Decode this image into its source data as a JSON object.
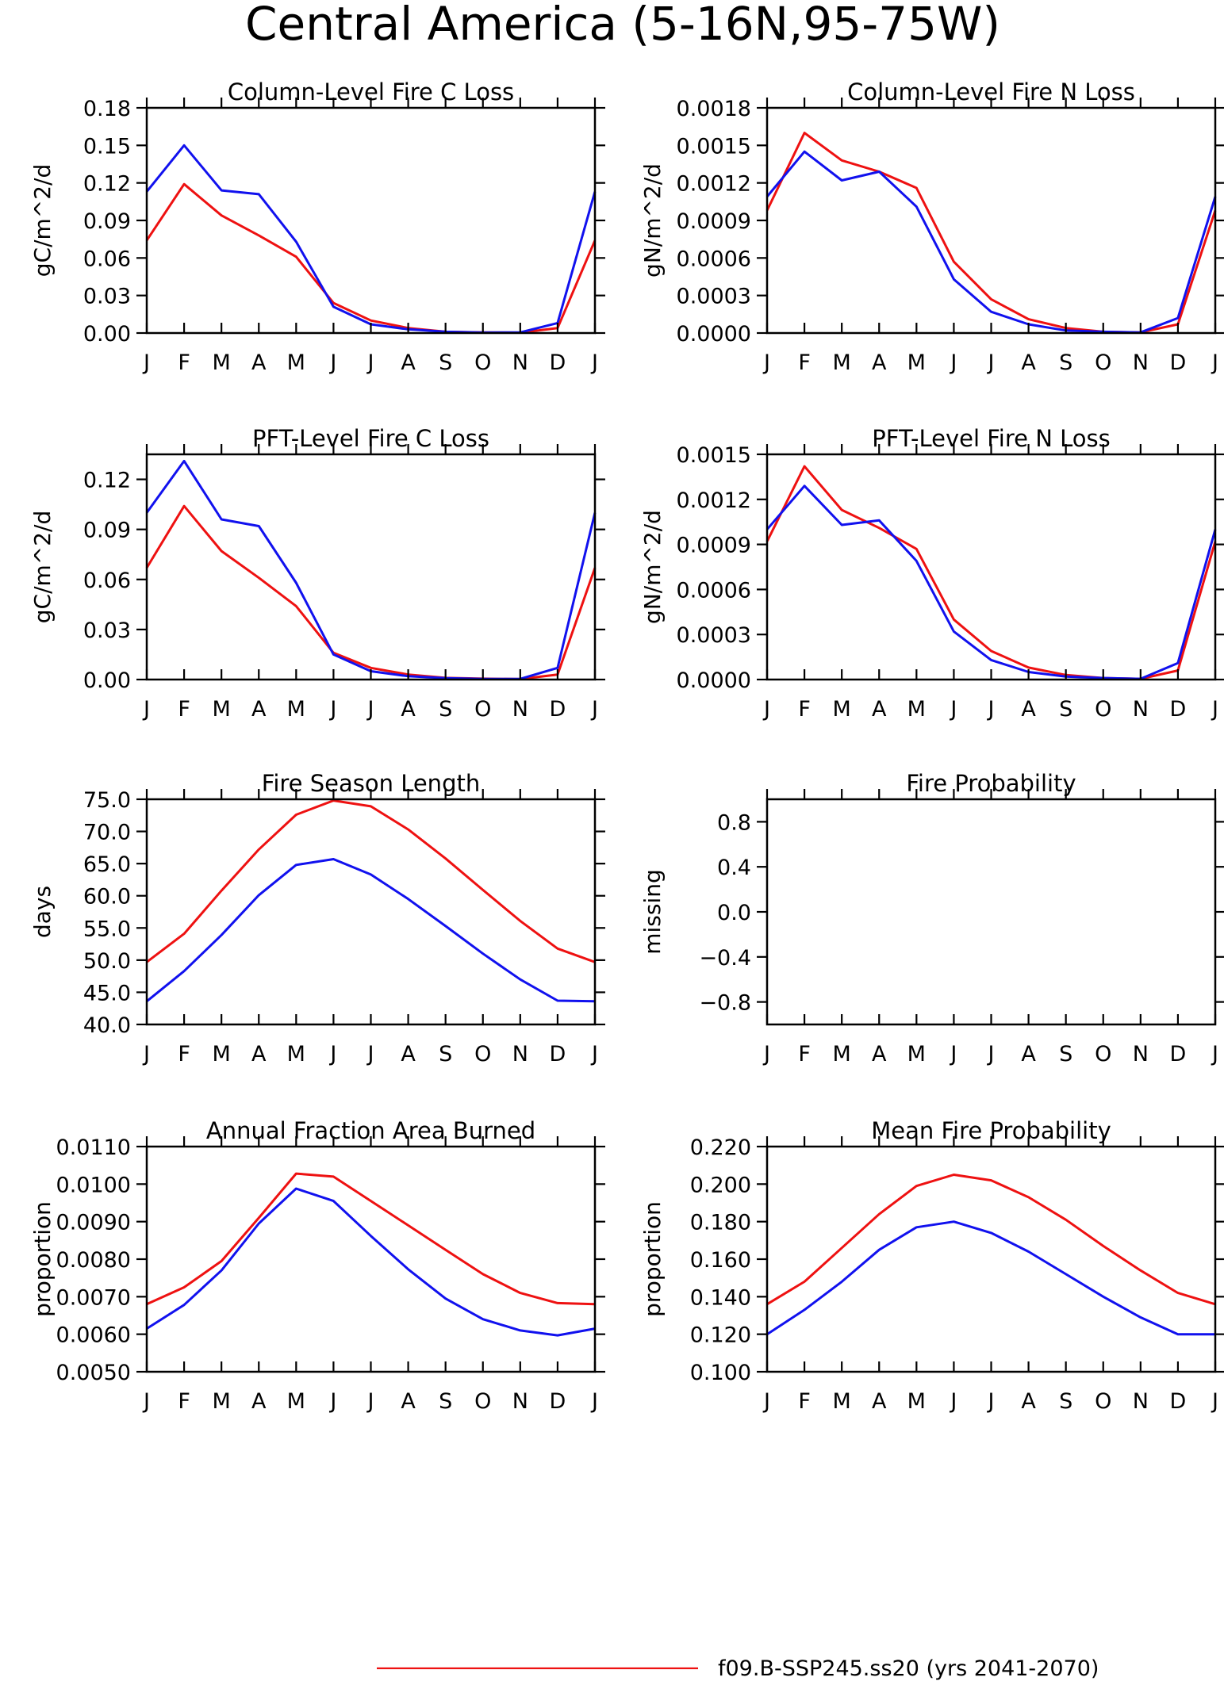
{
  "figure_title": "Central America (5-16N,95-75W)",
  "colors": {
    "series_red": "#ee1111",
    "series_blue": "#1111ee",
    "axis": "#000000"
  },
  "legend": {
    "label": "f09.B-SSP245.ss20 (yrs 2041-2070)"
  },
  "chart_data": [
    {
      "type": "line",
      "title": "Column-Level Fire C Loss",
      "ylabel": "gC/m^2/d",
      "categories": [
        "J",
        "F",
        "M",
        "A",
        "M",
        "J",
        "J",
        "A",
        "S",
        "O",
        "N",
        "D",
        "J"
      ],
      "ylim": [
        0,
        0.18
      ],
      "yticks": [
        0.0,
        0.03,
        0.06,
        0.09,
        0.12,
        0.15,
        0.18
      ],
      "ytick_labels": [
        "0.00",
        "0.03",
        "0.06",
        "0.09",
        "0.12",
        "0.15",
        "0.18"
      ],
      "series": [
        {
          "color": "#ee1111",
          "values": [
            0.074,
            0.119,
            0.094,
            0.078,
            0.061,
            0.024,
            0.01,
            0.004,
            0.001,
            0.0005,
            0.0003,
            0.004,
            0.074
          ]
        },
        {
          "color": "#1111ee",
          "values": [
            0.113,
            0.15,
            0.114,
            0.111,
            0.073,
            0.021,
            0.007,
            0.003,
            0.001,
            0.0004,
            0.0005,
            0.008,
            0.113
          ]
        }
      ]
    },
    {
      "type": "line",
      "title": "Column-Level Fire N Loss",
      "ylabel": "gN/m^2/d",
      "categories": [
        "J",
        "F",
        "M",
        "A",
        "M",
        "J",
        "J",
        "A",
        "S",
        "O",
        "N",
        "D",
        "J"
      ],
      "ylim": [
        0,
        0.0018
      ],
      "yticks": [
        0.0,
        0.0003,
        0.0006,
        0.0009,
        0.0012,
        0.0015,
        0.0018
      ],
      "ytick_labels": [
        "0.0000",
        "0.0003",
        "0.0006",
        "0.0009",
        "0.0012",
        "0.0015",
        "0.0018"
      ],
      "series": [
        {
          "color": "#ee1111",
          "values": [
            0.00098,
            0.0016,
            0.00138,
            0.00129,
            0.00116,
            0.00057,
            0.00027,
            0.00011,
            4e-05,
            1e-05,
            5e-06,
            7e-05,
            0.00098
          ]
        },
        {
          "color": "#1111ee",
          "values": [
            0.00109,
            0.00145,
            0.00122,
            0.00129,
            0.00101,
            0.00043,
            0.00017,
            7e-05,
            2e-05,
            1e-05,
            5e-06,
            0.00012,
            0.00109
          ]
        }
      ]
    },
    {
      "type": "line",
      "title": "PFT-Level Fire C Loss",
      "ylabel": "gC/m^2/d",
      "categories": [
        "J",
        "F",
        "M",
        "A",
        "M",
        "J",
        "J",
        "A",
        "S",
        "O",
        "N",
        "D",
        "J"
      ],
      "ylim": [
        0,
        0.135
      ],
      "yticks": [
        0.0,
        0.03,
        0.06,
        0.09,
        0.12
      ],
      "ytick_labels": [
        "0.00",
        "0.03",
        "0.06",
        "0.09",
        "0.12"
      ],
      "series": [
        {
          "color": "#ee1111",
          "values": [
            0.067,
            0.104,
            0.077,
            0.061,
            0.044,
            0.016,
            0.007,
            0.003,
            0.001,
            0.0005,
            0.0003,
            0.003,
            0.067
          ]
        },
        {
          "color": "#1111ee",
          "values": [
            0.1,
            0.131,
            0.096,
            0.092,
            0.058,
            0.015,
            0.005,
            0.002,
            0.0008,
            0.0004,
            0.0004,
            0.007,
            0.1
          ]
        }
      ]
    },
    {
      "type": "line",
      "title": "PFT-Level Fire N Loss",
      "ylabel": "gN/m^2/d",
      "categories": [
        "J",
        "F",
        "M",
        "A",
        "M",
        "J",
        "J",
        "A",
        "S",
        "O",
        "N",
        "D",
        "J"
      ],
      "ylim": [
        0,
        0.0015
      ],
      "yticks": [
        0.0,
        0.0003,
        0.0006,
        0.0009,
        0.0012,
        0.0015
      ],
      "ytick_labels": [
        "0.0000",
        "0.0003",
        "0.0006",
        "0.0009",
        "0.0012",
        "0.0015"
      ],
      "series": [
        {
          "color": "#ee1111",
          "values": [
            0.00092,
            0.00142,
            0.00113,
            0.00101,
            0.00087,
            0.0004,
            0.00019,
            8e-05,
            3e-05,
            1e-05,
            5e-06,
            6e-05,
            0.00092
          ]
        },
        {
          "color": "#1111ee",
          "values": [
            0.001,
            0.00129,
            0.00103,
            0.00106,
            0.00079,
            0.00032,
            0.00013,
            5e-05,
            2e-05,
            1e-05,
            5e-06,
            0.00011,
            0.001
          ]
        }
      ]
    },
    {
      "type": "line",
      "title": "Fire Season Length",
      "ylabel": "days",
      "categories": [
        "J",
        "F",
        "M",
        "A",
        "M",
        "J",
        "J",
        "A",
        "S",
        "O",
        "N",
        "D",
        "J"
      ],
      "ylim": [
        40,
        75
      ],
      "yticks": [
        40,
        45,
        50,
        55,
        60,
        65,
        70,
        75
      ],
      "ytick_labels": [
        "40.0",
        "45.0",
        "50.0",
        "55.0",
        "60.0",
        "65.0",
        "70.0",
        "75.0"
      ],
      "series": [
        {
          "color": "#ee1111",
          "values": [
            49.7,
            54.1,
            60.8,
            67.2,
            72.6,
            74.8,
            73.9,
            70.3,
            65.8,
            60.9,
            56.1,
            51.8,
            49.7
          ]
        },
        {
          "color": "#1111ee",
          "values": [
            43.6,
            48.3,
            53.9,
            60.1,
            64.8,
            65.7,
            63.3,
            59.5,
            55.3,
            51.0,
            47.0,
            43.7,
            43.6
          ]
        }
      ]
    },
    {
      "type": "line",
      "title": "Fire Probability",
      "ylabel": "missing",
      "categories": [
        "J",
        "F",
        "M",
        "A",
        "M",
        "J",
        "J",
        "A",
        "S",
        "O",
        "N",
        "D",
        "J"
      ],
      "ylim": [
        -1.0,
        1.0
      ],
      "yticks": [
        -0.8,
        -0.4,
        0.0,
        0.4,
        0.8
      ],
      "ytick_labels": [
        "−0.8",
        "−0.4",
        "0.0",
        "0.4",
        "0.8"
      ],
      "series": []
    },
    {
      "type": "line",
      "title": "Annual Fraction Area Burned",
      "ylabel": "proportion",
      "categories": [
        "J",
        "F",
        "M",
        "A",
        "M",
        "J",
        "J",
        "A",
        "S",
        "O",
        "N",
        "D",
        "J"
      ],
      "ylim": [
        0.005,
        0.011
      ],
      "yticks": [
        0.005,
        0.006,
        0.007,
        0.008,
        0.009,
        0.01,
        0.011
      ],
      "ytick_labels": [
        "0.0050",
        "0.0060",
        "0.0070",
        "0.0080",
        "0.0090",
        "0.0100",
        "0.0110"
      ],
      "series": [
        {
          "color": "#ee1111",
          "values": [
            0.0068,
            0.00725,
            0.00795,
            0.0091,
            0.01028,
            0.0102,
            0.00955,
            0.0089,
            0.00825,
            0.0076,
            0.0071,
            0.00683,
            0.0068
          ]
        },
        {
          "color": "#1111ee",
          "values": [
            0.00615,
            0.00678,
            0.0077,
            0.00895,
            0.00988,
            0.00955,
            0.00862,
            0.00773,
            0.00695,
            0.0064,
            0.0061,
            0.00597,
            0.00615
          ]
        }
      ]
    },
    {
      "type": "line",
      "title": "Mean Fire Probability",
      "ylabel": "proportion",
      "categories": [
        "J",
        "F",
        "M",
        "A",
        "M",
        "J",
        "J",
        "A",
        "S",
        "O",
        "N",
        "D",
        "J"
      ],
      "ylim": [
        0.1,
        0.22
      ],
      "yticks": [
        0.1,
        0.12,
        0.14,
        0.16,
        0.18,
        0.2,
        0.22
      ],
      "ytick_labels": [
        "0.100",
        "0.120",
        "0.140",
        "0.160",
        "0.180",
        "0.200",
        "0.220"
      ],
      "series": [
        {
          "color": "#ee1111",
          "values": [
            0.136,
            0.148,
            0.166,
            0.184,
            0.199,
            0.205,
            0.202,
            0.193,
            0.181,
            0.167,
            0.154,
            0.142,
            0.136
          ]
        },
        {
          "color": "#1111ee",
          "values": [
            0.12,
            0.133,
            0.148,
            0.165,
            0.177,
            0.18,
            0.174,
            0.164,
            0.152,
            0.14,
            0.129,
            0.12,
            0.12
          ]
        }
      ]
    }
  ]
}
